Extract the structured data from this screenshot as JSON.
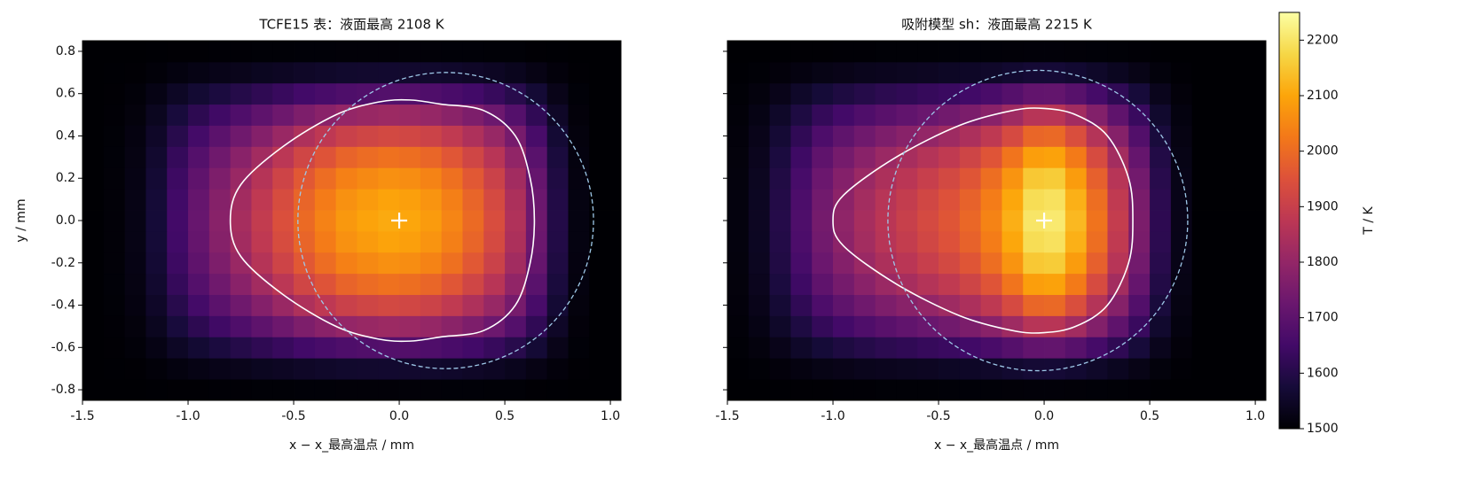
{
  "chart_data": [
    {
      "type": "heatmap",
      "title": "TCFE15 表：液面最高 2108 K",
      "xlabel": "x − x_最高温点 / mm",
      "ylabel": "y / mm",
      "xlim": [
        -1.5,
        1.05
      ],
      "ylim": [
        -0.85,
        0.85
      ],
      "xticks": [
        -1.5,
        {
          "value": -1,
          "label": "-1.0"
        },
        -0.5,
        {
          "value": 0,
          "label": "0.0"
        },
        0.5,
        {
          "value": 1,
          "label": "1.0"
        }
      ],
      "yticks": [
        -0.8,
        -0.6,
        -0.4,
        -0.2,
        {
          "value": 0,
          "label": "0.0"
        },
        0.2,
        0.4,
        0.6,
        0.8
      ],
      "x": [
        -1.45,
        -1.35,
        -1.25,
        -1.15,
        -1.05,
        -0.95,
        -0.85,
        -0.75,
        -0.65,
        -0.55,
        -0.45,
        -0.35,
        -0.25,
        -0.15,
        -0.05,
        0.05,
        0.15,
        0.25,
        0.35,
        0.45,
        0.55,
        0.65,
        0.75,
        0.85,
        0.95,
        1.05
      ],
      "y": [
        -0.8,
        -0.7,
        -0.6,
        -0.5,
        -0.4,
        -0.3,
        -0.2,
        -0.1,
        0,
        0.1,
        0.2,
        0.3,
        0.4,
        0.5,
        0.6,
        0.7,
        0.8
      ],
      "z": [
        [
          1500,
          1500,
          1500,
          1501,
          1502,
          1502,
          1503,
          1503,
          1504,
          1504,
          1505,
          1505,
          1506,
          1506,
          1506,
          1506,
          1506,
          1505,
          1505,
          1504,
          1504,
          1502,
          1501,
          1500,
          1500,
          1500
        ],
        [
          1500,
          1501,
          1502,
          1507,
          1515,
          1522,
          1528,
          1533,
          1539,
          1544,
          1550,
          1554,
          1558,
          1560,
          1561,
          1560,
          1558,
          1555,
          1550,
          1544,
          1535,
          1523,
          1510,
          1502,
          1500,
          1500
        ],
        [
          1500,
          1502,
          1507,
          1522,
          1546,
          1566,
          1584,
          1600,
          1617,
          1633,
          1650,
          1662,
          1673,
          1679,
          1682,
          1681,
          1675,
          1664,
          1650,
          1631,
          1606,
          1569,
          1529,
          1505,
          1500,
          1500
        ],
        [
          1500,
          1503,
          1512,
          1538,
          1579,
          1614,
          1646,
          1674,
          1702,
          1731,
          1759,
          1781,
          1801,
          1810,
          1816,
          1813,
          1804,
          1784,
          1759,
          1728,
          1684,
          1620,
          1550,
          1509,
          1500,
          1500
        ],
        [
          1500,
          1504,
          1517,
          1551,
          1606,
          1653,
          1696,
          1734,
          1772,
          1811,
          1849,
          1879,
          1905,
          1917,
          1926,
          1921,
          1909,
          1883,
          1849,
          1807,
          1747,
          1662,
          1568,
          1513,
          1500,
          1500
        ],
        [
          1500,
          1505,
          1520,
          1561,
          1628,
          1684,
          1735,
          1781,
          1827,
          1873,
          1919,
          1954,
          1986,
          2001,
          2011,
          2006,
          1991,
          1959,
          1919,
          1868,
          1797,
          1694,
          1581,
          1515,
          1500,
          1500
        ],
        [
          1500,
          1506,
          1522,
          1568,
          1641,
          1704,
          1760,
          1811,
          1862,
          1913,
          1964,
          2003,
          2038,
          2054,
          2065,
          2060,
          2043,
          2009,
          1964,
          1907,
          1828,
          1715,
          1590,
          1517,
          1500,
          1500
        ],
        [
          1500,
          1506,
          1524,
          1572,
          1649,
          1715,
          1774,
          1827,
          1881,
          1935,
          1989,
          2030,
          2066,
          2084,
          2096,
          2090,
          2072,
          2036,
          1989,
          1929,
          1846,
          1726,
          1595,
          1518,
          1500,
          1500
        ],
        [
          1500,
          1506,
          1524,
          1573,
          1652,
          1719,
          1780,
          1834,
          1889,
          1944,
          1999,
          2041,
          2078,
          2096,
          2108,
          2102,
          2084,
          2047,
          1999,
          1938,
          1853,
          1731,
          1597,
          1518,
          1500,
          1500
        ],
        [
          1500,
          1506,
          1524,
          1572,
          1649,
          1715,
          1774,
          1827,
          1881,
          1935,
          1989,
          2030,
          2066,
          2084,
          2096,
          2090,
          2072,
          2036,
          1989,
          1929,
          1846,
          1726,
          1595,
          1518,
          1500,
          1500
        ],
        [
          1500,
          1506,
          1522,
          1568,
          1641,
          1704,
          1760,
          1811,
          1862,
          1913,
          1964,
          2003,
          2038,
          2054,
          2065,
          2060,
          2043,
          2009,
          1964,
          1907,
          1828,
          1715,
          1590,
          1517,
          1500,
          1500
        ],
        [
          1500,
          1505,
          1520,
          1561,
          1628,
          1684,
          1735,
          1781,
          1827,
          1873,
          1919,
          1954,
          1986,
          2001,
          2011,
          2006,
          1991,
          1959,
          1919,
          1868,
          1797,
          1694,
          1581,
          1515,
          1500,
          1500
        ],
        [
          1500,
          1504,
          1517,
          1551,
          1606,
          1653,
          1696,
          1734,
          1772,
          1811,
          1849,
          1879,
          1905,
          1917,
          1926,
          1921,
          1909,
          1883,
          1849,
          1807,
          1747,
          1662,
          1568,
          1513,
          1500,
          1500
        ],
        [
          1500,
          1503,
          1512,
          1538,
          1579,
          1614,
          1646,
          1674,
          1702,
          1731,
          1759,
          1781,
          1801,
          1810,
          1816,
          1813,
          1804,
          1784,
          1759,
          1728,
          1684,
          1620,
          1550,
          1509,
          1500,
          1500
        ],
        [
          1500,
          1502,
          1507,
          1522,
          1546,
          1566,
          1584,
          1600,
          1617,
          1633,
          1650,
          1662,
          1673,
          1679,
          1682,
          1681,
          1675,
          1664,
          1650,
          1631,
          1606,
          1569,
          1529,
          1505,
          1500,
          1500
        ],
        [
          1500,
          1501,
          1502,
          1507,
          1515,
          1522,
          1528,
          1533,
          1539,
          1544,
          1550,
          1554,
          1558,
          1560,
          1561,
          1560,
          1558,
          1555,
          1550,
          1544,
          1535,
          1523,
          1510,
          1502,
          1500,
          1500
        ],
        [
          1500,
          1500,
          1500,
          1501,
          1502,
          1502,
          1503,
          1503,
          1504,
          1504,
          1505,
          1505,
          1506,
          1506,
          1506,
          1506,
          1506,
          1505,
          1505,
          1504,
          1504,
          1502,
          1501,
          1500,
          1500,
          1500
        ]
      ],
      "contour": {
        "x": [
          0.64,
          0.62,
          0.55,
          0.4,
          0.2,
          0.05,
          -0.1,
          -0.3,
          -0.55,
          -0.75,
          -0.8,
          -0.75,
          -0.55,
          -0.3,
          -0.1,
          0.05,
          0.2,
          0.4,
          0.55,
          0.62
        ],
        "y": [
          0,
          0.2,
          0.4,
          0.52,
          0.55,
          0.57,
          0.56,
          0.5,
          0.35,
          0.17,
          0,
          -0.17,
          -0.35,
          -0.5,
          -0.56,
          -0.57,
          -0.55,
          -0.52,
          -0.4,
          -0.2
        ]
      },
      "circle": {
        "cx": 0.22,
        "cy": 0,
        "r": 0.7
      },
      "peak": {
        "x": 0,
        "y": 0
      }
    },
    {
      "type": "heatmap",
      "title": "吸附模型 sh：液面最高 2215 K",
      "xlabel": "x − x_最高温点 / mm",
      "xlim": [
        -1.5,
        1.05
      ],
      "ylim": [
        -0.85,
        0.85
      ],
      "xticks": [
        -1.5,
        {
          "value": -1,
          "label": "-1.0"
        },
        -0.5,
        {
          "value": 0,
          "label": "0.0"
        },
        0.5,
        {
          "value": 1,
          "label": "1.0"
        }
      ],
      "yticks": [
        -0.8,
        -0.6,
        -0.4,
        -0.2,
        0,
        0.2,
        0.4,
        0.6,
        0.8
      ],
      "x": [
        -1.45,
        -1.35,
        -1.25,
        -1.15,
        -1.05,
        -0.95,
        -0.85,
        -0.75,
        -0.65,
        -0.55,
        -0.45,
        -0.35,
        -0.25,
        -0.15,
        -0.05,
        0.05,
        0.15,
        0.25,
        0.35,
        0.45,
        0.55,
        0.65,
        0.75,
        0.85,
        0.95,
        1.05
      ],
      "y": [
        -0.8,
        -0.7,
        -0.6,
        -0.5,
        -0.4,
        -0.3,
        -0.2,
        -0.1,
        0,
        0.1,
        0.2,
        0.3,
        0.4,
        0.5,
        0.6,
        0.7,
        0.8
      ],
      "z": [
        [
          1500,
          1500,
          1501,
          1502,
          1502,
          1503,
          1503,
          1504,
          1504,
          1504,
          1505,
          1505,
          1505,
          1506,
          1507,
          1507,
          1506,
          1505,
          1504,
          1503,
          1501,
          1500,
          1500,
          1500,
          1500,
          1500
        ],
        [
          1501,
          1504,
          1510,
          1517,
          1524,
          1529,
          1534,
          1537,
          1540,
          1543,
          1546,
          1549,
          1554,
          1562,
          1570,
          1571,
          1563,
          1552,
          1539,
          1526,
          1511,
          1503,
          1500,
          1500,
          1500,
          1500
        ],
        [
          1504,
          1513,
          1530,
          1552,
          1573,
          1588,
          1601,
          1612,
          1620,
          1629,
          1637,
          1648,
          1663,
          1685,
          1710,
          1712,
          1689,
          1655,
          1618,
          1577,
          1534,
          1509,
          1500,
          1500,
          1500,
          1500
        ],
        [
          1507,
          1522,
          1552,
          1589,
          1626,
          1652,
          1675,
          1693,
          1708,
          1723,
          1738,
          1756,
          1782,
          1820,
          1865,
          1868,
          1827,
          1768,
          1704,
          1634,
          1559,
          1515,
          1500,
          1500,
          1500,
          1500
        ],
        [
          1510,
          1530,
          1570,
          1620,
          1670,
          1705,
          1735,
          1760,
          1780,
          1800,
          1821,
          1845,
          1880,
          1931,
          1991,
          1996,
          1940,
          1861,
          1775,
          1680,
          1580,
          1520,
          1500,
          1500,
          1500,
          1500
        ],
        [
          1512,
          1536,
          1584,
          1644,
          1704,
          1746,
          1782,
          1812,
          1836,
          1860,
          1885,
          1914,
          1956,
          2017,
          2089,
          2095,
          2028,
          1933,
          1830,
          1716,
          1596,
          1524,
          1500,
          1500,
          1500,
          1500
        ],
        [
          1513,
          1540,
          1593,
          1660,
          1726,
          1772,
          1812,
          1846,
          1872,
          1899,
          1926,
          1958,
          2005,
          2072,
          2152,
          2158,
          2085,
          1979,
          1865,
          1739,
          1606,
          1527,
          1500,
          1500,
          1500,
          1500
        ],
        [
          1514,
          1542,
          1598,
          1669,
          1738,
          1787,
          1829,
          1865,
          1892,
          1920,
          1949,
          1983,
          2032,
          2103,
          2187,
          2194,
          2116,
          2005,
          1885,
          1752,
          1612,
          1528,
          1500,
          1500,
          1500,
          1500
        ],
        [
          1514,
          1543,
          1600,
          1672,
          1743,
          1793,
          1836,
          1872,
          1900,
          1929,
          1958,
          1993,
          2043,
          2115,
          2201,
          2208,
          2129,
          2015,
          1893,
          1757,
          1614,
          1529,
          1500,
          1500,
          1500,
          1500
        ],
        [
          1514,
          1542,
          1598,
          1669,
          1738,
          1787,
          1829,
          1865,
          1892,
          1920,
          1949,
          1983,
          2032,
          2103,
          2187,
          2194,
          2116,
          2005,
          1885,
          1752,
          1612,
          1528,
          1500,
          1500,
          1500,
          1500
        ],
        [
          1513,
          1540,
          1593,
          1660,
          1726,
          1772,
          1812,
          1846,
          1872,
          1899,
          1926,
          1958,
          2005,
          2072,
          2152,
          2158,
          2085,
          1979,
          1865,
          1739,
          1606,
          1527,
          1500,
          1500,
          1500,
          1500
        ],
        [
          1512,
          1536,
          1584,
          1644,
          1704,
          1746,
          1782,
          1812,
          1836,
          1860,
          1885,
          1914,
          1956,
          2017,
          2089,
          2095,
          2028,
          1933,
          1830,
          1716,
          1596,
          1524,
          1500,
          1500,
          1500,
          1500
        ],
        [
          1510,
          1530,
          1570,
          1620,
          1670,
          1705,
          1735,
          1760,
          1780,
          1800,
          1821,
          1845,
          1880,
          1931,
          1991,
          1996,
          1940,
          1861,
          1775,
          1680,
          1580,
          1520,
          1500,
          1500,
          1500,
          1500
        ],
        [
          1507,
          1522,
          1552,
          1589,
          1626,
          1652,
          1675,
          1693,
          1708,
          1723,
          1738,
          1756,
          1782,
          1820,
          1865,
          1868,
          1827,
          1768,
          1704,
          1634,
          1559,
          1515,
          1500,
          1500,
          1500,
          1500
        ],
        [
          1504,
          1513,
          1530,
          1552,
          1573,
          1588,
          1601,
          1612,
          1620,
          1629,
          1637,
          1648,
          1663,
          1685,
          1710,
          1712,
          1689,
          1655,
          1618,
          1577,
          1534,
          1509,
          1500,
          1500,
          1500,
          1500
        ],
        [
          1501,
          1504,
          1510,
          1517,
          1524,
          1529,
          1534,
          1537,
          1540,
          1543,
          1546,
          1549,
          1554,
          1562,
          1570,
          1571,
          1563,
          1552,
          1539,
          1526,
          1511,
          1503,
          1500,
          1500,
          1500,
          1500
        ],
        [
          1500,
          1500,
          1501,
          1502,
          1502,
          1503,
          1503,
          1504,
          1504,
          1504,
          1505,
          1505,
          1505,
          1506,
          1507,
          1507,
          1506,
          1505,
          1504,
          1503,
          1501,
          1500,
          1500,
          1500,
          1500,
          1500
        ]
      ],
      "contour": {
        "x": [
          0.42,
          0.4,
          0.3,
          0.15,
          0,
          -0.15,
          -0.4,
          -0.7,
          -0.95,
          -1.0,
          -0.95,
          -0.7,
          -0.4,
          -0.15,
          0,
          0.15,
          0.3,
          0.4
        ],
        "y": [
          0,
          0.2,
          0.4,
          0.5,
          0.53,
          0.52,
          0.45,
          0.3,
          0.12,
          0,
          -0.12,
          -0.3,
          -0.45,
          -0.52,
          -0.53,
          -0.5,
          -0.4,
          -0.2
        ]
      },
      "circle": {
        "cx": -0.03,
        "cy": 0,
        "r": 0.71
      },
      "peak": {
        "x": 0,
        "y": 0
      }
    },
    {
      "type": "colorbar",
      "label": "T / K",
      "colormap": "inferno",
      "clim": [
        1500,
        2250
      ],
      "ticks": [
        1500,
        1600,
        1700,
        1800,
        1900,
        2000,
        2100,
        2200
      ]
    }
  ]
}
